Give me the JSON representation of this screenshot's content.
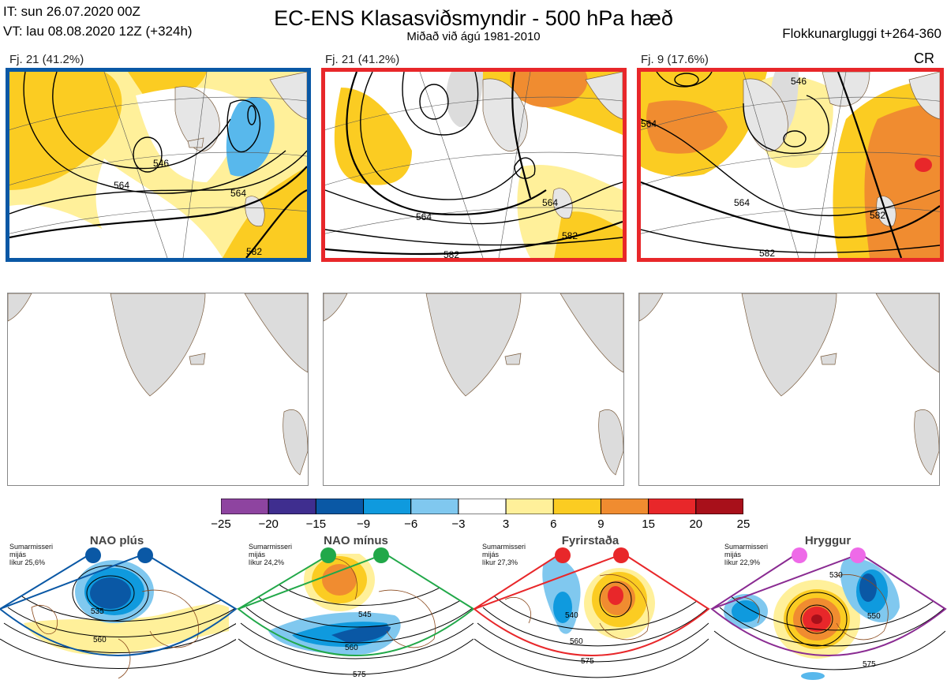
{
  "header": {
    "it_line": "IT: sun 26.07.2020 00Z",
    "vt_line": "VT: lau 08.08.2020 12Z  (+324h)",
    "title": "EC-ENS Klasasviðsmyndir - 500 hPa hæð",
    "subtitle": "Miðað við ágú 1981-2010",
    "window": "Flokkunargluggi t+264-360"
  },
  "panels": [
    {
      "label": "Fj. 21 (41.2%)",
      "border": "#0a58a5",
      "contours": [
        "546",
        "564",
        "564",
        "582"
      ]
    },
    {
      "label": "Fj. 21 (41.2%)",
      "border": "#e8272a",
      "contours": [
        "564",
        "564",
        "582",
        "582"
      ]
    },
    {
      "label": "Fj. 9 (17.6%)",
      "border": "#e8272a",
      "tag": "CR",
      "contours": [
        "546",
        "564",
        "564",
        "582",
        "582"
      ]
    }
  ],
  "colorbar": {
    "colors": [
      "#8e44a0",
      "#3f2e8f",
      "#0a58a5",
      "#0f9ade",
      "#80c8ef",
      "#ffffff",
      "#fff09a",
      "#fbcc22",
      "#f08c30",
      "#e8272a",
      "#a8101a"
    ],
    "ticks": [
      "−25",
      "−20",
      "−15",
      "−9",
      "−6",
      "−3",
      "3",
      "6",
      "9",
      "15",
      "20",
      "25"
    ]
  },
  "regimes": [
    {
      "name": "NAO plús",
      "note": [
        "Sumarmisseri",
        "mijás",
        "líkur 25,6%"
      ],
      "color": "#0a58a5",
      "labels": [
        "535",
        "560"
      ]
    },
    {
      "name": "NAO mínus",
      "note": [
        "Sumarmisseri",
        "mijás",
        "líkur 24,2%"
      ],
      "color": "#21a849",
      "labels": [
        "545",
        "560",
        "575"
      ]
    },
    {
      "name": "Fyrirstaða",
      "note": [
        "Sumarmisseri",
        "mijás",
        "líkur 27,3%"
      ],
      "color": "#e8272a",
      "labels": [
        "540",
        "560",
        "575"
      ]
    },
    {
      "name": "Hryggur",
      "note": [
        "Sumarmisseri",
        "mijás",
        "líkur 22,9%"
      ],
      "color": "#8a2b92",
      "labels": [
        "530",
        "550",
        "575"
      ]
    }
  ]
}
